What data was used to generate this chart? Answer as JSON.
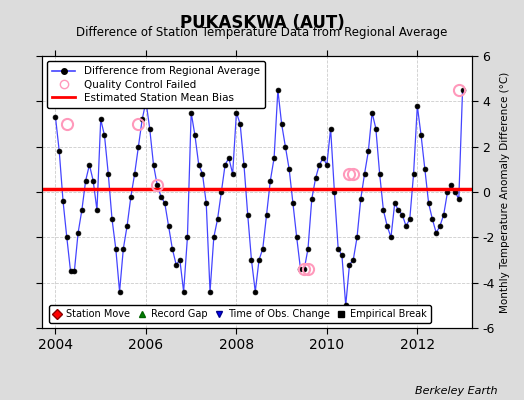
{
  "title": "PUKASKWA (AUT)",
  "subtitle": "Difference of Station Temperature Data from Regional Average",
  "ylabel_right": "Monthly Temperature Anomaly Difference (°C)",
  "xlim": [
    2003.7,
    2013.2
  ],
  "ylim": [
    -6,
    6
  ],
  "yticks": [
    -6,
    -4,
    -2,
    0,
    2,
    4,
    6
  ],
  "xticks": [
    2004,
    2006,
    2008,
    2010,
    2012
  ],
  "bias_value": 0.15,
  "bg_color": "#dcdcdc",
  "plot_bg_color": "#ffffff",
  "line_color": "#4444ff",
  "marker_color": "#000000",
  "bias_color": "#ff0000",
  "qc_color": "#ff99bb",
  "data_x": [
    2004.0,
    2004.083,
    2004.167,
    2004.25,
    2004.333,
    2004.417,
    2004.5,
    2004.583,
    2004.667,
    2004.75,
    2004.833,
    2004.917,
    2005.0,
    2005.083,
    2005.167,
    2005.25,
    2005.333,
    2005.417,
    2005.5,
    2005.583,
    2005.667,
    2005.75,
    2005.833,
    2005.917,
    2006.0,
    2006.083,
    2006.167,
    2006.25,
    2006.333,
    2006.417,
    2006.5,
    2006.583,
    2006.667,
    2006.75,
    2006.833,
    2006.917,
    2007.0,
    2007.083,
    2007.167,
    2007.25,
    2007.333,
    2007.417,
    2007.5,
    2007.583,
    2007.667,
    2007.75,
    2007.833,
    2007.917,
    2008.0,
    2008.083,
    2008.167,
    2008.25,
    2008.333,
    2008.417,
    2008.5,
    2008.583,
    2008.667,
    2008.75,
    2008.833,
    2008.917,
    2009.0,
    2009.083,
    2009.167,
    2009.25,
    2009.333,
    2009.417,
    2009.5,
    2009.583,
    2009.667,
    2009.75,
    2009.833,
    2009.917,
    2010.0,
    2010.083,
    2010.167,
    2010.25,
    2010.333,
    2010.417,
    2010.5,
    2010.583,
    2010.667,
    2010.75,
    2010.833,
    2010.917,
    2011.0,
    2011.083,
    2011.167,
    2011.25,
    2011.333,
    2011.417,
    2011.5,
    2011.583,
    2011.667,
    2011.75,
    2011.833,
    2011.917,
    2012.0,
    2012.083,
    2012.167,
    2012.25,
    2012.333,
    2012.417,
    2012.5,
    2012.583,
    2012.667,
    2012.75,
    2012.833,
    2012.917,
    2013.0
  ],
  "data_y": [
    3.3,
    1.8,
    -0.4,
    -2.0,
    -3.5,
    -3.5,
    -1.8,
    -0.8,
    0.5,
    1.2,
    0.5,
    -0.8,
    3.2,
    2.5,
    0.8,
    -1.2,
    -2.5,
    -4.4,
    -2.5,
    -1.5,
    -0.2,
    0.8,
    2.0,
    3.2,
    4.0,
    2.8,
    1.2,
    0.3,
    -0.2,
    -0.5,
    -1.5,
    -2.5,
    -3.2,
    -3.0,
    -4.4,
    -2.0,
    3.5,
    2.5,
    1.2,
    0.8,
    -0.5,
    -4.4,
    -2.0,
    -1.2,
    0.0,
    1.2,
    1.5,
    0.8,
    3.5,
    3.0,
    1.2,
    -1.0,
    -3.0,
    -4.4,
    -3.0,
    -2.5,
    -1.0,
    0.5,
    1.5,
    4.5,
    3.0,
    2.0,
    1.0,
    -0.5,
    -2.0,
    -3.4,
    -3.4,
    -2.5,
    -0.3,
    0.6,
    1.2,
    1.5,
    1.2,
    2.8,
    0.0,
    -2.5,
    -2.8,
    -5.0,
    -3.2,
    -3.0,
    -2.0,
    -0.3,
    0.8,
    1.8,
    3.5,
    2.8,
    0.8,
    -0.8,
    -1.5,
    -2.0,
    -0.5,
    -0.8,
    -1.0,
    -1.5,
    -1.2,
    0.8,
    3.8,
    2.5,
    1.0,
    -0.5,
    -1.2,
    -1.8,
    -1.5,
    -1.0,
    0.0,
    0.3,
    0.0,
    -0.3,
    4.5
  ],
  "qc_failed_x": [
    2004.25,
    2005.833,
    2006.25,
    2009.5,
    2009.583,
    2010.5,
    2010.583,
    2012.917
  ],
  "qc_failed_y": [
    3.0,
    3.0,
    0.3,
    -3.4,
    -3.4,
    0.8,
    0.8,
    4.5
  ],
  "watermark": "Berkeley Earth"
}
